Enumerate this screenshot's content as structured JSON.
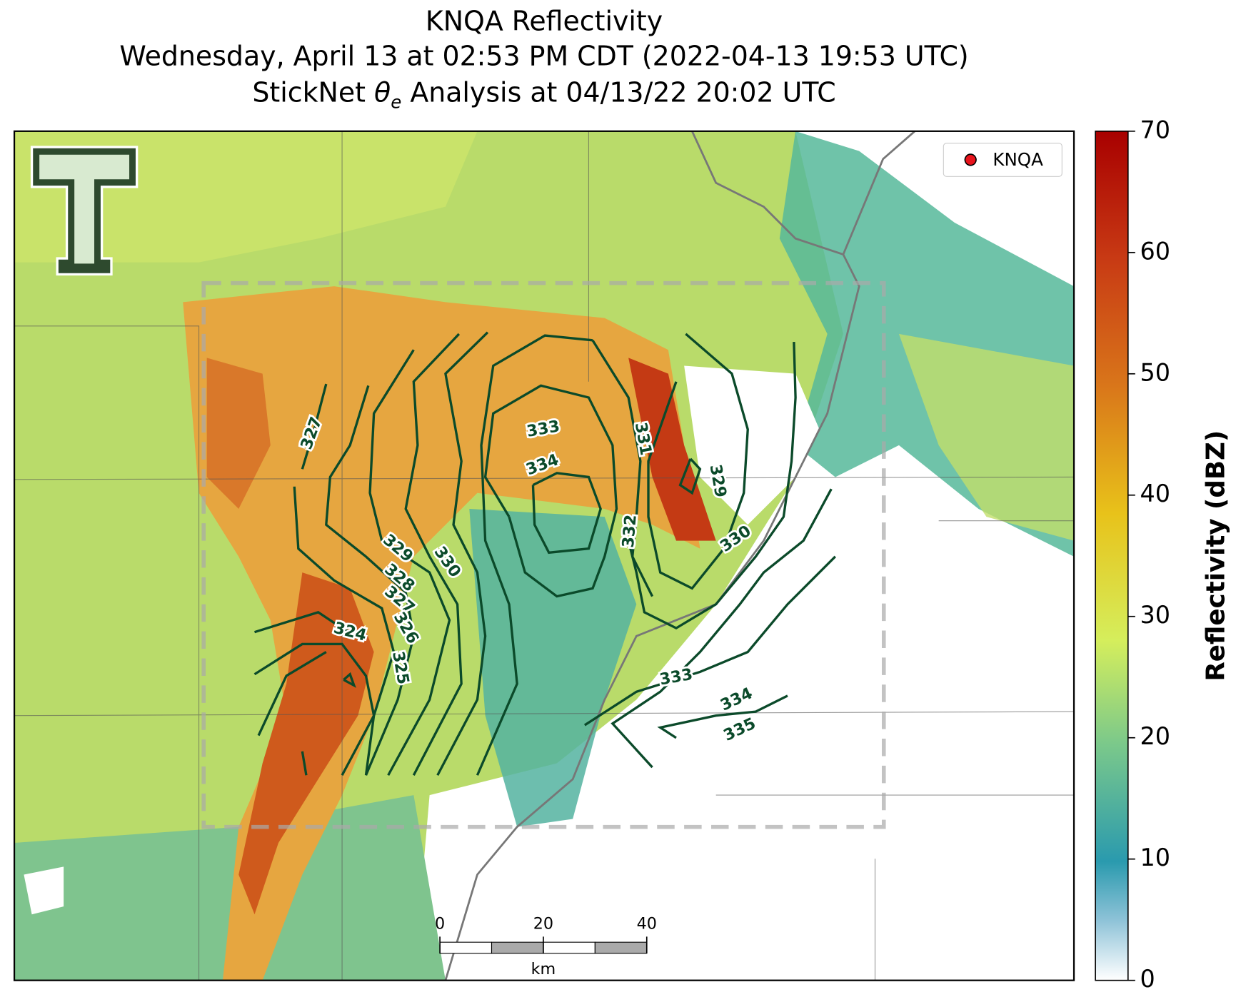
{
  "header": {
    "title_line1": "KNQA Reflectivity",
    "title_line2": "Wednesday, April 13 at 02:53 PM CDT (2022-04-13 19:53 UTC)",
    "title_line3": {
      "before": "StickNet ",
      "symbol": "θ",
      "subscript": "e",
      "after": " Analysis at 04/13/22 20:02 UTC"
    }
  },
  "legend": {
    "label": "KNQA",
    "color": "#e8141c"
  },
  "contour_labels": [
    327,
    333,
    334,
    331,
    329,
    332,
    330,
    329,
    330,
    328,
    327,
    326,
    324,
    325,
    333,
    334,
    335
  ],
  "contour_color": "#0b4a2a",
  "scale_bar": {
    "ticks": [
      0,
      20,
      40
    ],
    "unit": "km"
  },
  "colorbar": {
    "label": "Reflectivity (dBZ)",
    "lim": [
      0,
      70
    ],
    "ticks": [
      0,
      10,
      20,
      30,
      40,
      50,
      60,
      70
    ]
  }
}
